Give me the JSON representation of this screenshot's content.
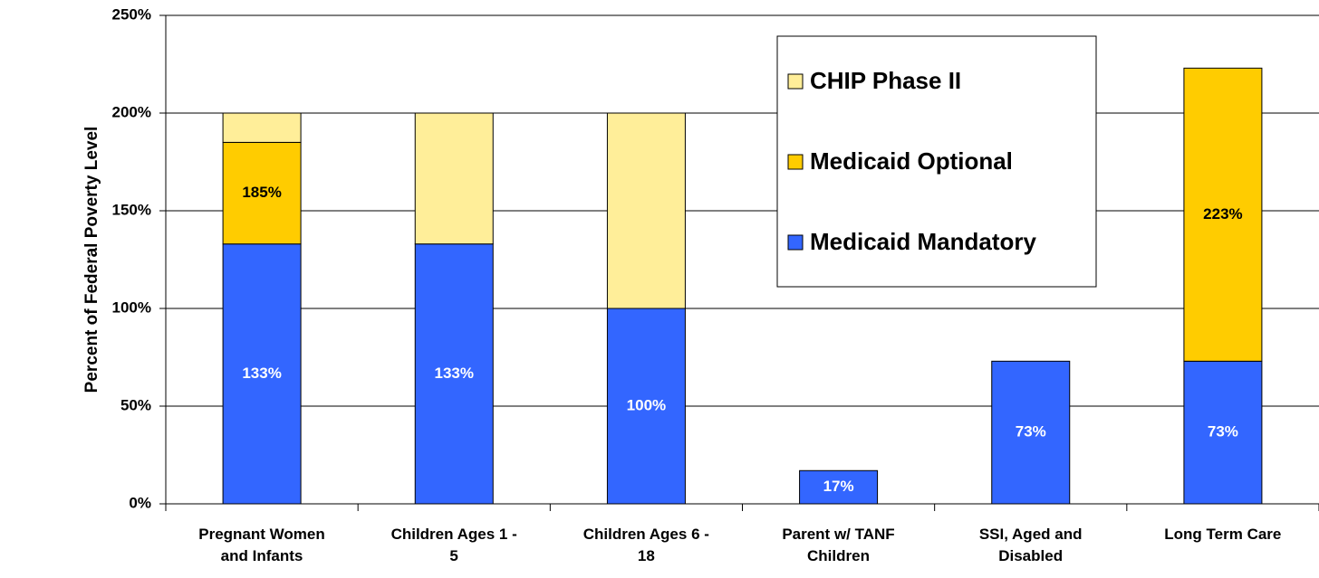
{
  "chart_data": {
    "type": "stacked-bar",
    "y_label": "Percent of Federal Poverty Level",
    "categories": [
      "Pregnant Women\nand Infants",
      "Children Ages 1 -\n5",
      "Children Ages 6 -\n18",
      "Parent w/ TANF\nChildren",
      "SSI, Aged and\nDisabled",
      "Long Term Care"
    ],
    "series": [
      {
        "name": "Medicaid Mandatory",
        "color": "#3366ff",
        "label_color": "#ffffff",
        "values": [
          133,
          133,
          100,
          17,
          73,
          73
        ],
        "annotations": [
          "133%",
          "133%",
          "100%",
          "17%",
          "73%",
          "73%"
        ]
      },
      {
        "name": "Medicaid Optional",
        "color": "#ffcc00",
        "label_color": "#000000",
        "values": [
          52,
          0,
          0,
          0,
          0,
          150
        ],
        "annotations": [
          "185%",
          null,
          null,
          null,
          null,
          "223%"
        ]
      },
      {
        "name": "CHIP Phase II",
        "color": "#ffee99",
        "values": [
          15,
          67,
          100,
          0,
          0,
          0
        ]
      }
    ],
    "ylim": [
      0,
      250
    ],
    "yticks": [
      {
        "value": 0,
        "label": "0%"
      },
      {
        "value": 50,
        "label": "50%"
      },
      {
        "value": 100,
        "label": "100%"
      },
      {
        "value": 150,
        "label": "150%"
      },
      {
        "value": 200,
        "label": "200%"
      },
      {
        "value": 250,
        "label": "250%"
      }
    ],
    "grid": true,
    "legend": "top-right"
  }
}
